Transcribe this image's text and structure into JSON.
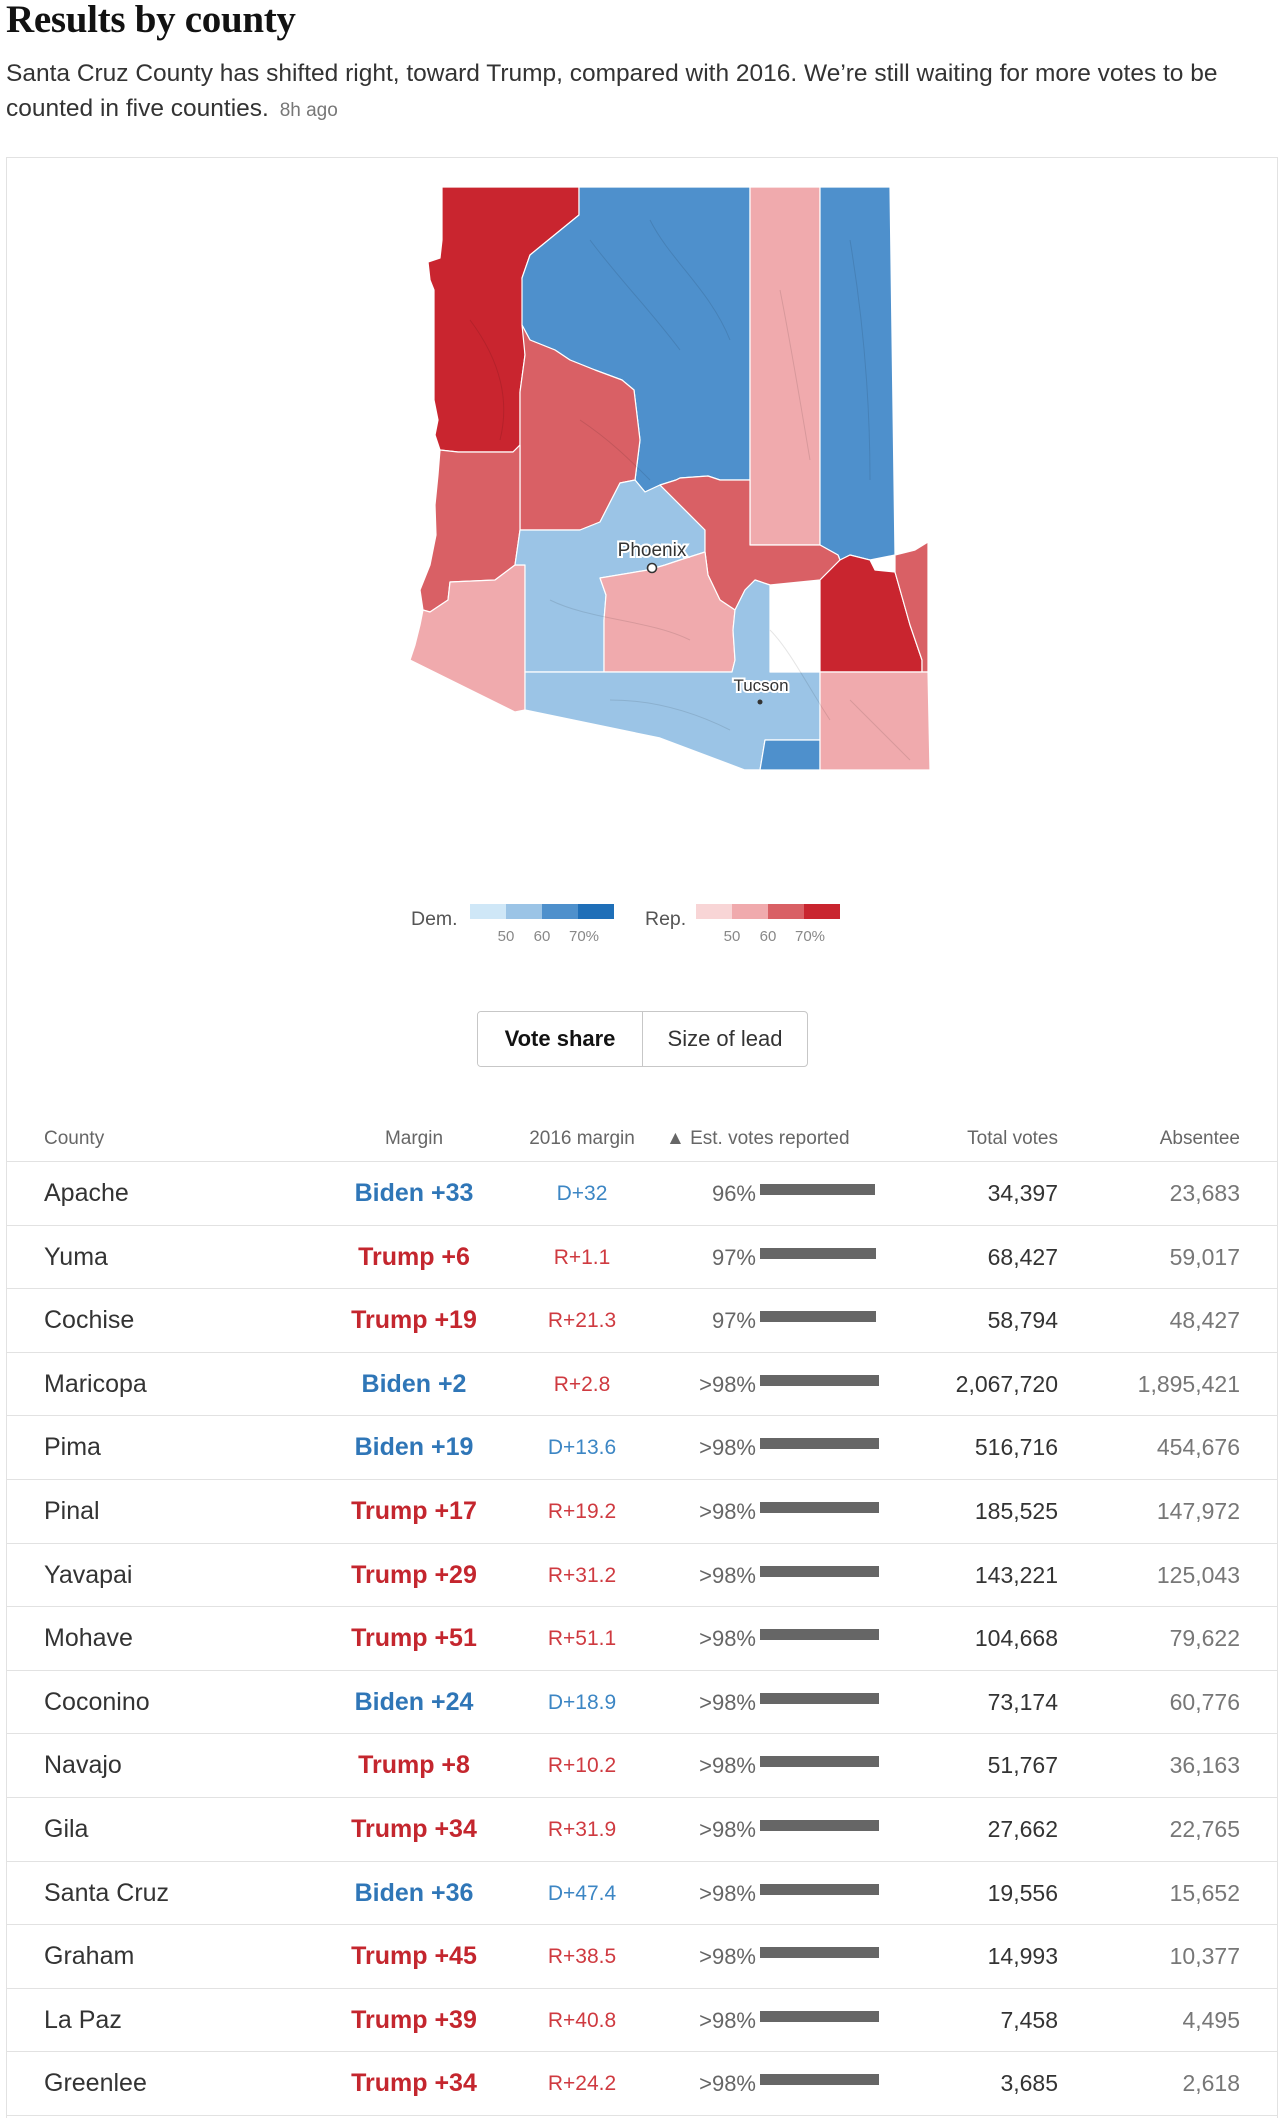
{
  "header": {
    "title": "Results by county",
    "description": "Santa Cruz County has shifted right, toward Trump, compared with 2016. We’re still waiting for more votes to be counted in five counties.",
    "updated": "8h ago"
  },
  "map": {
    "cities": [
      "Phoenix",
      "Tucson"
    ],
    "county_fills": {
      "Mohave": "#c9252f",
      "Coconino": "#4e90cc",
      "Navajo": "#f0aaad",
      "Apache": "#4e90cc",
      "Yavapai": "#d96065",
      "La Paz": "#d96065",
      "Yuma": "#f0aaad",
      "Maricopa": "#9bc4e6",
      "Gila": "#d96065",
      "Pinal": "#f0aaad",
      "Pima": "#9bc4e6",
      "Santa Cruz": "#4e90cc",
      "Cochise": "#f0aaad",
      "Graham": "#c9252f",
      "Greenlee": "#d96065"
    }
  },
  "legend": {
    "dem_label": "Dem.",
    "rep_label": "Rep.",
    "ticks": [
      "50",
      "60",
      "70%"
    ],
    "dem_colors": [
      "#cfe7f7",
      "#9bc4e6",
      "#4e90cc",
      "#1f6fb8"
    ],
    "rep_colors": [
      "#f8d5d6",
      "#f0aaad",
      "#d96065",
      "#c9252f"
    ]
  },
  "toggle": {
    "options": [
      "Vote share",
      "Size of lead"
    ],
    "active": "Vote share"
  },
  "table": {
    "headers": {
      "county": "County",
      "margin": "Margin",
      "margin2016": "2016 margin",
      "reported": "▲ Est. votes reported",
      "total": "Total votes",
      "absentee": "Absentee"
    },
    "rows": [
      {
        "county": "Apache",
        "margin": "Biden +33",
        "party": "dem",
        "m16": "D+32",
        "p16": "dem",
        "pct": "96%",
        "reported": 0.96,
        "total": "34,397",
        "absentee": "23,683"
      },
      {
        "county": "Yuma",
        "margin": "Trump +6",
        "party": "rep",
        "m16": "R+1.1",
        "p16": "rep",
        "pct": "97%",
        "reported": 0.97,
        "total": "68,427",
        "absentee": "59,017"
      },
      {
        "county": "Cochise",
        "margin": "Trump +19",
        "party": "rep",
        "m16": "R+21.3",
        "p16": "rep",
        "pct": "97%",
        "reported": 0.97,
        "total": "58,794",
        "absentee": "48,427"
      },
      {
        "county": "Maricopa",
        "margin": "Biden +2",
        "party": "dem",
        "m16": "R+2.8",
        "p16": "rep",
        "pct": ">98%",
        "reported": 0.99,
        "total": "2,067,720",
        "absentee": "1,895,421"
      },
      {
        "county": "Pima",
        "margin": "Biden +19",
        "party": "dem",
        "m16": "D+13.6",
        "p16": "dem",
        "pct": ">98%",
        "reported": 0.99,
        "total": "516,716",
        "absentee": "454,676"
      },
      {
        "county": "Pinal",
        "margin": "Trump +17",
        "party": "rep",
        "m16": "R+19.2",
        "p16": "rep",
        "pct": ">98%",
        "reported": 0.99,
        "total": "185,525",
        "absentee": "147,972"
      },
      {
        "county": "Yavapai",
        "margin": "Trump +29",
        "party": "rep",
        "m16": "R+31.2",
        "p16": "rep",
        "pct": ">98%",
        "reported": 0.99,
        "total": "143,221",
        "absentee": "125,043"
      },
      {
        "county": "Mohave",
        "margin": "Trump +51",
        "party": "rep",
        "m16": "R+51.1",
        "p16": "rep",
        "pct": ">98%",
        "reported": 0.99,
        "total": "104,668",
        "absentee": "79,622"
      },
      {
        "county": "Coconino",
        "margin": "Biden +24",
        "party": "dem",
        "m16": "D+18.9",
        "p16": "dem",
        "pct": ">98%",
        "reported": 0.99,
        "total": "73,174",
        "absentee": "60,776"
      },
      {
        "county": "Navajo",
        "margin": "Trump +8",
        "party": "rep",
        "m16": "R+10.2",
        "p16": "rep",
        "pct": ">98%",
        "reported": 0.99,
        "total": "51,767",
        "absentee": "36,163"
      },
      {
        "county": "Gila",
        "margin": "Trump +34",
        "party": "rep",
        "m16": "R+31.9",
        "p16": "rep",
        "pct": ">98%",
        "reported": 0.99,
        "total": "27,662",
        "absentee": "22,765"
      },
      {
        "county": "Santa Cruz",
        "margin": "Biden +36",
        "party": "dem",
        "m16": "D+47.4",
        "p16": "dem",
        "pct": ">98%",
        "reported": 0.99,
        "total": "19,556",
        "absentee": "15,652"
      },
      {
        "county": "Graham",
        "margin": "Trump +45",
        "party": "rep",
        "m16": "R+38.5",
        "p16": "rep",
        "pct": ">98%",
        "reported": 0.99,
        "total": "14,993",
        "absentee": "10,377"
      },
      {
        "county": "La Paz",
        "margin": "Trump +39",
        "party": "rep",
        "m16": "R+40.8",
        "p16": "rep",
        "pct": ">98%",
        "reported": 0.99,
        "total": "7,458",
        "absentee": "4,495"
      },
      {
        "county": "Greenlee",
        "margin": "Trump +34",
        "party": "rep",
        "m16": "R+24.2",
        "p16": "rep",
        "pct": ">98%",
        "reported": 0.99,
        "total": "3,685",
        "absentee": "2,618"
      }
    ]
  }
}
